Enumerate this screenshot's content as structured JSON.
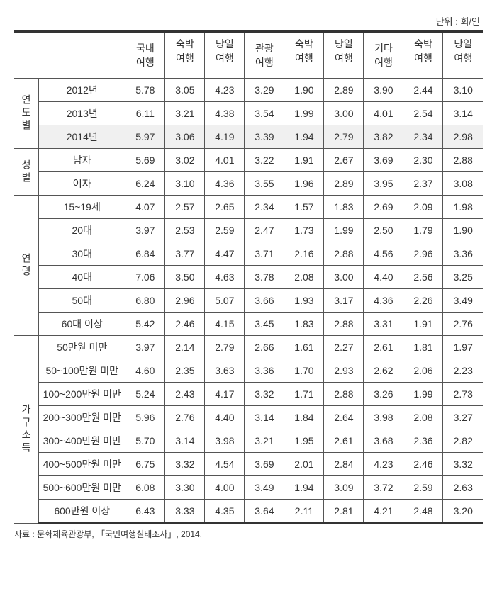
{
  "unit_label": "단위 : 회/인",
  "source_label": "자료 : 문화체육관광부, 「국민여행실태조사」, 2014.",
  "column_groups": [
    {
      "main": "국내\n여행",
      "sub": [
        "숙박\n여행",
        "당일\n여행"
      ]
    },
    {
      "main": "관광\n여행",
      "sub": [
        "숙박\n여행",
        "당일\n여행"
      ]
    },
    {
      "main": "기타\n여행",
      "sub": [
        "숙박\n여행",
        "당일\n여행"
      ]
    }
  ],
  "groups": [
    {
      "label": "연도별",
      "rows": [
        {
          "label": "2012년",
          "values": [
            "5.78",
            "3.05",
            "4.23",
            "3.29",
            "1.90",
            "2.89",
            "3.90",
            "2.44",
            "3.10"
          ]
        },
        {
          "label": "2013년",
          "values": [
            "6.11",
            "3.21",
            "4.38",
            "3.54",
            "1.99",
            "3.00",
            "4.01",
            "2.54",
            "3.14"
          ]
        },
        {
          "label": "2014년",
          "values": [
            "5.97",
            "3.06",
            "4.19",
            "3.39",
            "1.94",
            "2.79",
            "3.82",
            "2.34",
            "2.98"
          ],
          "highlight": true
        }
      ]
    },
    {
      "label": "성별",
      "rows": [
        {
          "label": "남자",
          "values": [
            "5.69",
            "3.02",
            "4.01",
            "3.22",
            "1.91",
            "2.67",
            "3.69",
            "2.30",
            "2.88"
          ]
        },
        {
          "label": "여자",
          "values": [
            "6.24",
            "3.10",
            "4.36",
            "3.55",
            "1.96",
            "2.89",
            "3.95",
            "2.37",
            "3.08"
          ]
        }
      ]
    },
    {
      "label": "연령",
      "rows": [
        {
          "label": "15~19세",
          "values": [
            "4.07",
            "2.57",
            "2.65",
            "2.34",
            "1.57",
            "1.83",
            "2.69",
            "2.09",
            "1.98"
          ]
        },
        {
          "label": "20대",
          "values": [
            "3.97",
            "2.53",
            "2.59",
            "2.47",
            "1.73",
            "1.99",
            "2.50",
            "1.79",
            "1.90"
          ]
        },
        {
          "label": "30대",
          "values": [
            "6.84",
            "3.77",
            "4.47",
            "3.71",
            "2.16",
            "2.88",
            "4.56",
            "2.96",
            "3.36"
          ]
        },
        {
          "label": "40대",
          "values": [
            "7.06",
            "3.50",
            "4.63",
            "3.78",
            "2.08",
            "3.00",
            "4.40",
            "2.56",
            "3.25"
          ]
        },
        {
          "label": "50대",
          "values": [
            "6.80",
            "2.96",
            "5.07",
            "3.66",
            "1.93",
            "3.17",
            "4.36",
            "2.26",
            "3.49"
          ]
        },
        {
          "label": "60대 이상",
          "values": [
            "5.42",
            "2.46",
            "4.15",
            "3.45",
            "1.83",
            "2.88",
            "3.31",
            "1.91",
            "2.76"
          ]
        }
      ]
    },
    {
      "label": "가구소득",
      "rows": [
        {
          "label": "50만원 미만",
          "values": [
            "3.97",
            "2.14",
            "2.79",
            "2.66",
            "1.61",
            "2.27",
            "2.61",
            "1.81",
            "1.97"
          ]
        },
        {
          "label": "50~100만원 미만",
          "values": [
            "4.60",
            "2.35",
            "3.63",
            "3.36",
            "1.70",
            "2.93",
            "2.62",
            "2.06",
            "2.23"
          ]
        },
        {
          "label": "100~200만원 미만",
          "values": [
            "5.24",
            "2.43",
            "4.17",
            "3.32",
            "1.71",
            "2.88",
            "3.26",
            "1.99",
            "2.73"
          ]
        },
        {
          "label": "200~300만원 미만",
          "values": [
            "5.96",
            "2.76",
            "4.40",
            "3.14",
            "1.84",
            "2.64",
            "3.98",
            "2.08",
            "3.27"
          ]
        },
        {
          "label": "300~400만원 미만",
          "values": [
            "5.70",
            "3.14",
            "3.98",
            "3.21",
            "1.95",
            "2.61",
            "3.68",
            "2.36",
            "2.82"
          ]
        },
        {
          "label": "400~500만원 미만",
          "values": [
            "6.75",
            "3.32",
            "4.54",
            "3.69",
            "2.01",
            "2.84",
            "4.23",
            "2.46",
            "3.32"
          ]
        },
        {
          "label": "500~600만원 미만",
          "values": [
            "6.08",
            "3.30",
            "4.00",
            "3.49",
            "1.94",
            "3.09",
            "3.72",
            "2.59",
            "2.63"
          ]
        },
        {
          "label": "600만원 이상",
          "values": [
            "6.43",
            "3.33",
            "4.35",
            "3.64",
            "2.11",
            "2.81",
            "4.21",
            "2.48",
            "3.20"
          ]
        }
      ]
    }
  ]
}
